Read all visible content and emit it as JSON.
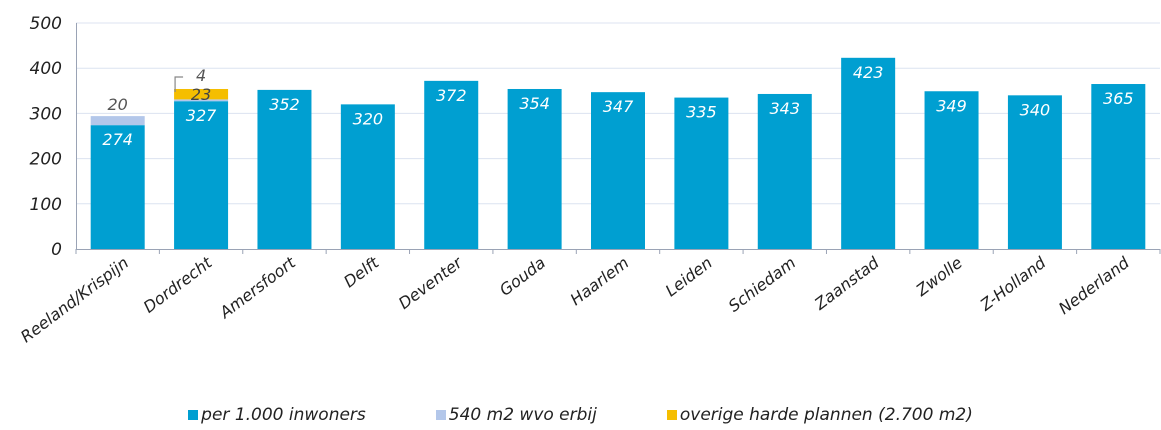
{
  "chart_data": {
    "type": "bar",
    "stacked": true,
    "categories": [
      "Reeland/Krispijn",
      "Dordrecht",
      "Amersfoort",
      "Delft",
      "Deventer",
      "Gouda",
      "Haarlem",
      "Leiden",
      "Schiedam",
      "Zaanstad",
      "Zwolle",
      "Z-Holland",
      "Nederland"
    ],
    "series": [
      {
        "name": "per 1.000 inwoners",
        "color": "#009FD1",
        "values": [
          274,
          327,
          352,
          320,
          372,
          354,
          347,
          335,
          343,
          423,
          349,
          340,
          365
        ]
      },
      {
        "name": "540 m2 wvo erbij",
        "color": "#B3C7EA",
        "values": [
          20,
          4,
          0,
          0,
          0,
          0,
          0,
          0,
          0,
          0,
          0,
          0,
          0
        ]
      },
      {
        "name": "overige harde plannen (2.700 m2)",
        "color": "#F5BE00",
        "values": [
          0,
          23,
          0,
          0,
          0,
          0,
          0,
          0,
          0,
          0,
          0,
          0,
          0
        ]
      }
    ],
    "ylim": [
      0,
      500
    ],
    "yticks": [
      "0",
      "100",
      "200",
      "300",
      "400",
      "500"
    ],
    "grid": true,
    "legend_position": "bottom"
  }
}
